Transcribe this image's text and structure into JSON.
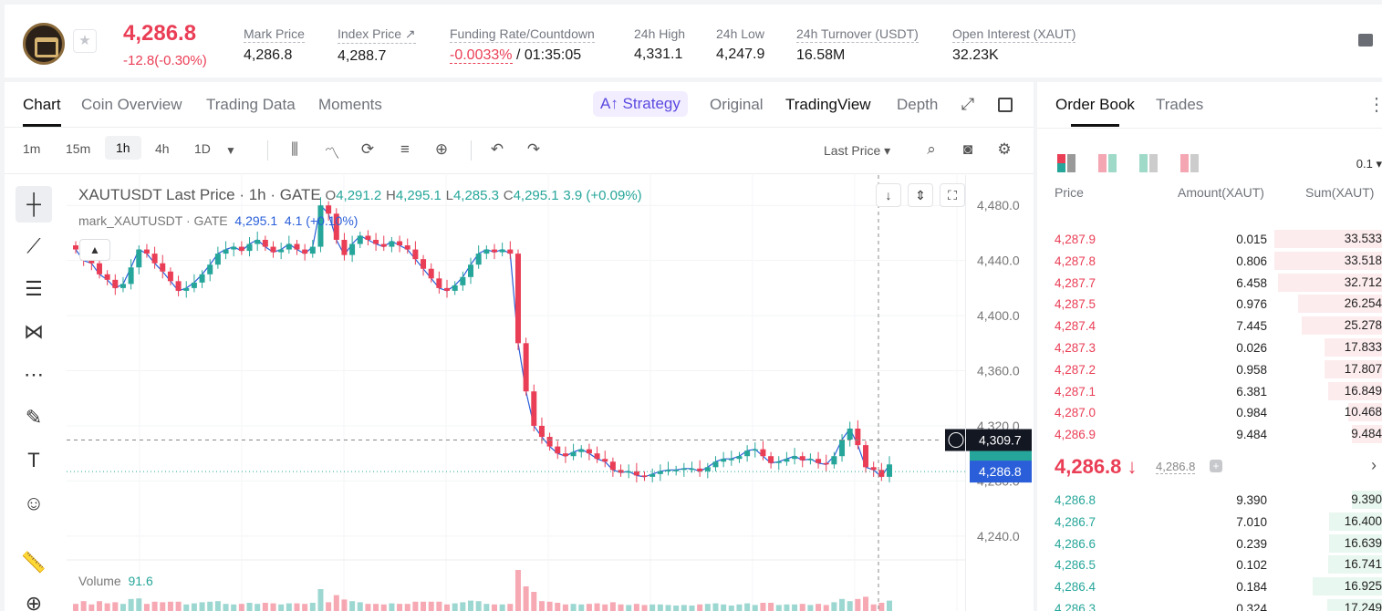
{
  "ticker": {
    "last_price": "4,286.8",
    "change": "-12.8(-0.30%)",
    "mark_price_label": "Mark Price",
    "mark_price": "4,286.8",
    "index_price_label": "Index Price ↗",
    "index_price": "4,288.7",
    "funding_label": "Funding Rate/Countdown",
    "funding_rate": "-0.0033%",
    "funding_countdown": " / 01:35:05",
    "high_label": "24h High",
    "high": "4,331.1",
    "low_label": "24h Low",
    "low": "4,247.9",
    "turnover_label": "24h Turnover (USDT)",
    "turnover": "16.58M",
    "oi_label": "Open Interest (XAUT)",
    "oi": "32.23K"
  },
  "chart_tabs": [
    "Chart",
    "Coin Overview",
    "Trading Data",
    "Moments"
  ],
  "view_tabs": {
    "strategy": "A↑ Strategy",
    "original": "Original",
    "tradingview": "TradingView",
    "depth": "Depth"
  },
  "timeframes": [
    "1m",
    "15m",
    "1h",
    "4h",
    "1D"
  ],
  "price_type": "Last Price ▾",
  "legend": {
    "symbol": "XAUTUSDT Last Price · 1h · GATE",
    "o_label": "O",
    "o": "4,291.2",
    "h_label": "H",
    "h": "4,295.1",
    "l_label": "L",
    "l": "4,285.3",
    "c_label": "C",
    "c": "4,295.1",
    "chg": "3.9 (+0.09%)",
    "mark_series": "mark_XAUTUSDT · GATE",
    "mark_value": "4,295.1",
    "mark_chg": "4.1 (+0.10%)",
    "volume_label": "Volume",
    "volume_value": "91.6"
  },
  "colors": {
    "up": "#26a69a",
    "down": "#ea3e56",
    "accent": "#5b4be0",
    "mark_line": "#2b5fd9"
  },
  "chart_data": {
    "type": "candlestick",
    "y_ticks": [
      4480,
      4440,
      4400,
      4360,
      4320,
      4280,
      4240
    ],
    "ylim": [
      4224,
      4502
    ],
    "crosshair_price": "4,309.7",
    "current_price": "4,286.8",
    "close_path": [
      4448,
      4440,
      4438,
      4430,
      4426,
      4420,
      4423,
      4435,
      4448,
      4445,
      4438,
      4432,
      4425,
      4418,
      4420,
      4424,
      4430,
      4437,
      4445,
      4448,
      4450,
      4447,
      4452,
      4455,
      4450,
      4446,
      4448,
      4452,
      4448,
      4445,
      4450,
      4480,
      4474,
      4455,
      4444,
      4452,
      4458,
      4455,
      4452,
      4450,
      4454,
      4451,
      4448,
      4441,
      4434,
      4427,
      4420,
      4418,
      4422,
      4428,
      4437,
      4445,
      4448,
      4446,
      4448,
      4445,
      4380,
      4345,
      4320,
      4312,
      4305,
      4300,
      4298,
      4301,
      4303,
      4300,
      4296,
      4294,
      4288,
      4286,
      4287,
      4284,
      4283,
      4285,
      4287,
      4288,
      4288,
      4289,
      4289,
      4287,
      4290,
      4294,
      4296,
      4296,
      4298,
      4302,
      4303,
      4298,
      4293,
      4294,
      4296,
      4298,
      4295,
      4296,
      4293,
      4292,
      4298,
      4310,
      4318,
      4306,
      4290,
      4288,
      4283,
      4292
    ]
  },
  "order_book": {
    "tabs": [
      "Order Book",
      "Trades"
    ],
    "precision": "0.1 ▾",
    "headers": {
      "price": "Price",
      "amount": "Amount(XAUT)",
      "sum": "Sum(XAUT)"
    },
    "asks": [
      {
        "price": "4,287.9",
        "amount": "0.015",
        "sum": "33.533",
        "fill": 1.0
      },
      {
        "price": "4,287.8",
        "amount": "0.806",
        "sum": "33.518",
        "fill": 1.0
      },
      {
        "price": "4,287.7",
        "amount": "6.458",
        "sum": "32.712",
        "fill": 0.97
      },
      {
        "price": "4,287.5",
        "amount": "0.976",
        "sum": "26.254",
        "fill": 0.78
      },
      {
        "price": "4,287.4",
        "amount": "7.445",
        "sum": "25.278",
        "fill": 0.75
      },
      {
        "price": "4,287.3",
        "amount": "0.026",
        "sum": "17.833",
        "fill": 0.53
      },
      {
        "price": "4,287.2",
        "amount": "0.958",
        "sum": "17.807",
        "fill": 0.53
      },
      {
        "price": "4,287.1",
        "amount": "6.381",
        "sum": "16.849",
        "fill": 0.5
      },
      {
        "price": "4,287.0",
        "amount": "0.984",
        "sum": "10.468",
        "fill": 0.31
      },
      {
        "price": "4,286.9",
        "amount": "9.484",
        "sum": "9.484",
        "fill": 0.28
      }
    ],
    "mid_price": "4,286.8 ↓",
    "mid_mark": "4,286.8",
    "bids": [
      {
        "price": "4,286.8",
        "amount": "9.390",
        "sum": "9.390",
        "fill": 0.28
      },
      {
        "price": "4,286.7",
        "amount": "7.010",
        "sum": "16.400",
        "fill": 0.49
      },
      {
        "price": "4,286.6",
        "amount": "0.239",
        "sum": "16.639",
        "fill": 0.49
      },
      {
        "price": "4,286.5",
        "amount": "0.102",
        "sum": "16.741",
        "fill": 0.5
      },
      {
        "price": "4,286.4",
        "amount": "0.184",
        "sum": "16.925",
        "fill": 0.64
      },
      {
        "price": "4,286.3",
        "amount": "0.324",
        "sum": "17.249",
        "fill": 0.51
      }
    ]
  }
}
